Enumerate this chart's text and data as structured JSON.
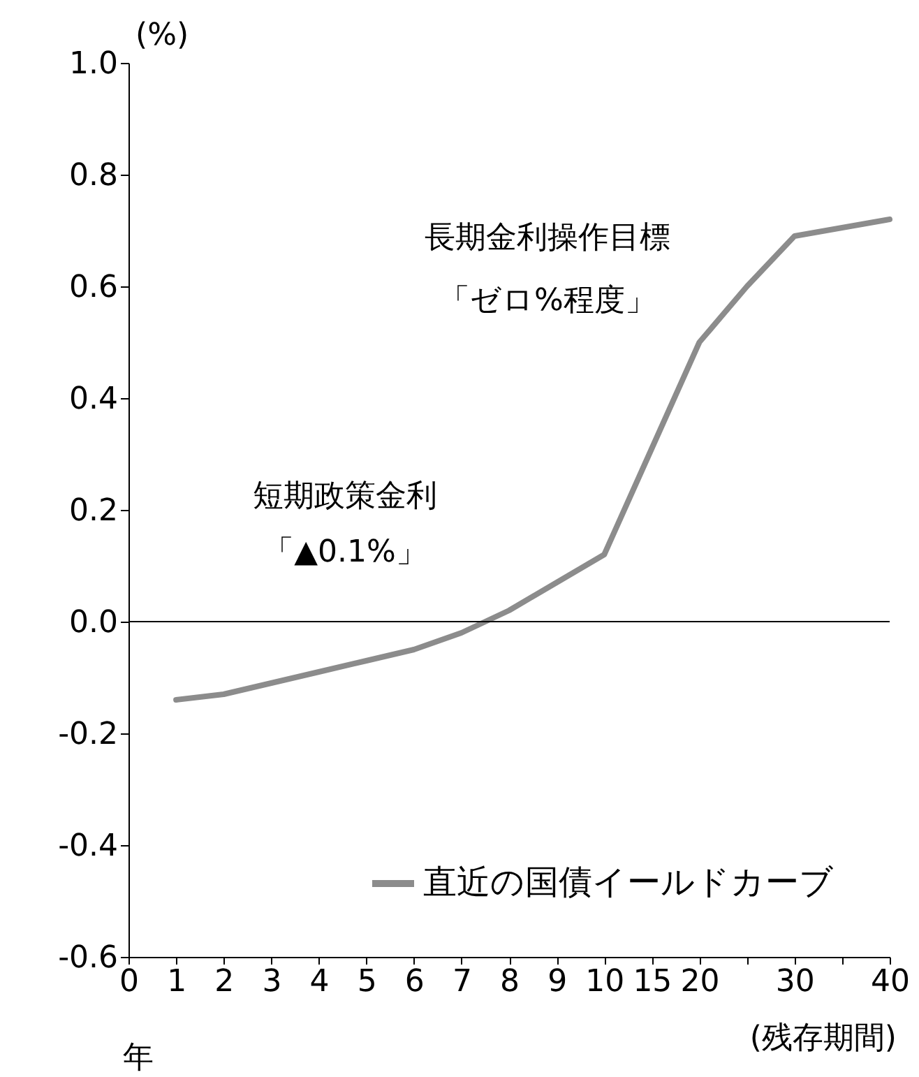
{
  "chart_data": {
    "type": "line",
    "ylabel": "(%)",
    "xlabel": "(残存期間)",
    "categories": [
      "0",
      "1",
      "2",
      "3",
      "4",
      "5",
      "6",
      "7",
      "8",
      "9",
      "10",
      "15",
      "20",
      null,
      "30",
      null,
      "40"
    ],
    "series": [
      {
        "name": "直近の国債イールドカーブ",
        "color": "#8c8c8c",
        "values": [
          null,
          -0.14,
          -0.13,
          -0.11,
          -0.09,
          -0.07,
          -0.05,
          -0.02,
          0.02,
          0.07,
          0.12,
          0.31,
          0.5,
          0.6,
          0.69,
          0.705,
          0.72
        ]
      }
    ],
    "ylim": [
      -0.6,
      1.0
    ],
    "yticks": [
      {
        "value": -0.6,
        "label": "-0.6"
      },
      {
        "value": -0.4,
        "label": "-0.4"
      },
      {
        "value": -0.2,
        "label": "-0.2"
      },
      {
        "value": 0,
        "label": "0.0"
      },
      {
        "value": 0.2,
        "label": "0.2"
      },
      {
        "value": 0.4,
        "label": "0.4"
      },
      {
        "value": 0.6,
        "label": "0.6"
      },
      {
        "value": 0.8,
        "label": "0.8"
      },
      {
        "value": 1,
        "label": "1.0"
      }
    ],
    "ref_lines": [
      {
        "axis": "y",
        "value": 0,
        "color": "#000000"
      }
    ],
    "legend": "bottom right",
    "annotations": [
      "短期政策金利",
      "「▲0.1%」",
      "長期金利操作目標",
      "「ゼロ%程度」",
      "年"
    ]
  }
}
